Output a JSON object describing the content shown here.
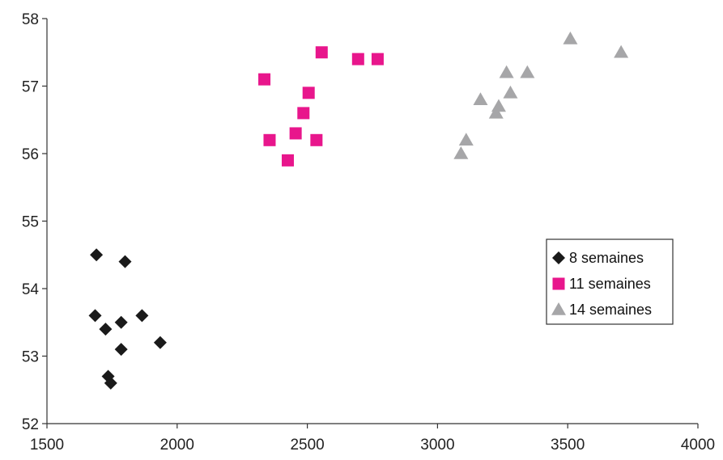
{
  "chart_data": {
    "type": "scatter",
    "title": "",
    "xlabel": "",
    "ylabel": "",
    "xlim": [
      1500,
      4000
    ],
    "ylim": [
      52,
      58
    ],
    "xticks": [
      1500,
      2000,
      2500,
      3000,
      3500,
      4000
    ],
    "yticks": [
      52,
      53,
      54,
      55,
      56,
      57,
      58
    ],
    "grid": false,
    "legend_position": "right",
    "series": [
      {
        "name": "8 semaines",
        "marker": "diamond",
        "color": "#1a1a1a",
        "points": [
          [
            1690,
            54.5
          ],
          [
            1800,
            54.4
          ],
          [
            1685,
            53.6
          ],
          [
            1865,
            53.6
          ],
          [
            1785,
            53.5
          ],
          [
            1725,
            53.4
          ],
          [
            1935,
            53.2
          ],
          [
            1785,
            53.1
          ],
          [
            1735,
            52.7
          ],
          [
            1745,
            52.6
          ]
        ]
      },
      {
        "name": "11 semaines",
        "marker": "square",
        "color": "#e8168c",
        "points": [
          [
            2555,
            57.5
          ],
          [
            2695,
            57.4
          ],
          [
            2770,
            57.4
          ],
          [
            2335,
            57.1
          ],
          [
            2505,
            56.9
          ],
          [
            2485,
            56.6
          ],
          [
            2455,
            56.3
          ],
          [
            2355,
            56.2
          ],
          [
            2535,
            56.2
          ],
          [
            2425,
            55.9
          ]
        ]
      },
      {
        "name": "14 semaines",
        "marker": "triangle",
        "color": "#a6a6a8",
        "points": [
          [
            3510,
            57.7
          ],
          [
            3705,
            57.5
          ],
          [
            3265,
            57.2
          ],
          [
            3345,
            57.2
          ],
          [
            3280,
            56.9
          ],
          [
            3165,
            56.8
          ],
          [
            3235,
            56.7
          ],
          [
            3225,
            56.6
          ],
          [
            3110,
            56.2
          ],
          [
            3090,
            56.0
          ]
        ]
      }
    ]
  }
}
